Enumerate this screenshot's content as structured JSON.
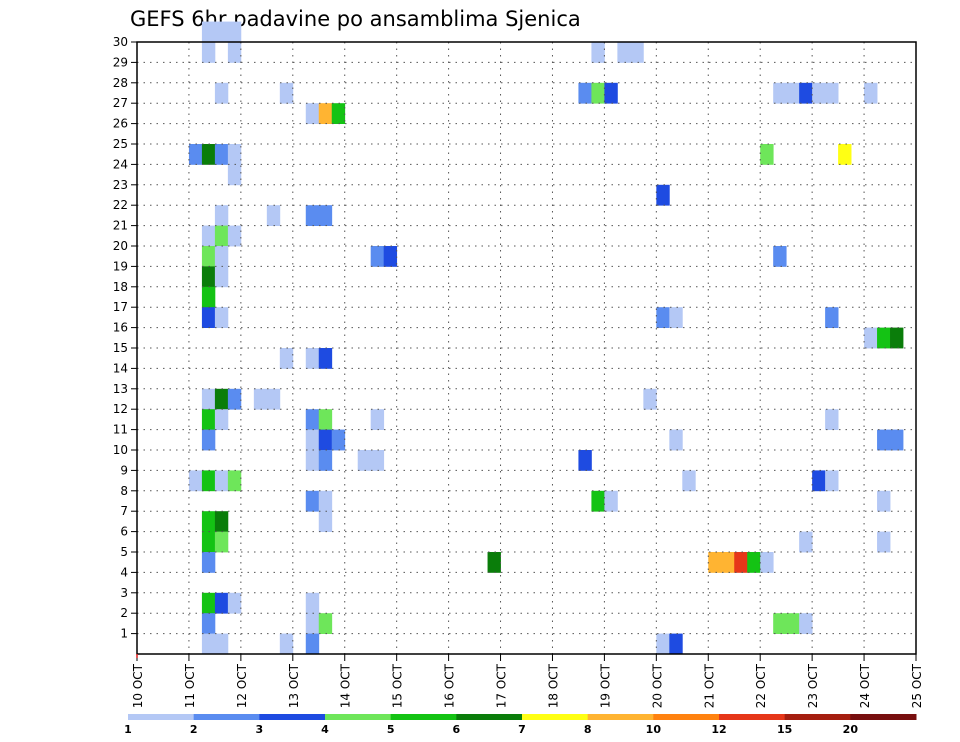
{
  "chart_data": {
    "type": "heatmap",
    "title": "GEFS 6hr padavine po ansamblima Sjenica",
    "xlabel": "",
    "ylabel": "",
    "x_ticks": [
      "10 OCT",
      "11 OCT",
      "12 OCT",
      "13 OCT",
      "14 OCT",
      "15 OCT",
      "16 OCT",
      "17 OCT",
      "18 OCT",
      "19 OCT",
      "20 OCT",
      "21 OCT",
      "22 OCT",
      "23 OCT",
      "24 OCT",
      "25 OCT"
    ],
    "y_ticks": [
      1,
      2,
      3,
      4,
      5,
      6,
      7,
      8,
      9,
      10,
      11,
      12,
      13,
      14,
      15,
      16,
      17,
      18,
      19,
      20,
      21,
      22,
      23,
      24,
      25,
      26,
      27,
      28,
      29,
      30
    ],
    "x_range": [
      0,
      60
    ],
    "y_range": [
      0,
      30
    ],
    "x_unit_note": "",
    "grid": true,
    "colorbar": {
      "labels": [
        "1",
        "2",
        "3",
        "4",
        "5",
        "6",
        "7",
        "8",
        "10",
        "12",
        "15",
        "20"
      ],
      "colors": [
        "#b4c8f5",
        "#5a8cf0",
        "#1e4be1",
        "#6ee65a",
        "#14c314",
        "#0a7d0a",
        "#ffff14",
        "#ffb432",
        "#ff820f",
        "#e63719",
        "#a51e0f",
        "#780f0f"
      ]
    },
    "levels": [
      "#b4c8f5",
      "#5a8cf0",
      "#1e4be1",
      "#6ee65a",
      "#14c314",
      "#0a7d0a",
      "#ffff14",
      "#ffb432",
      "#ff820f",
      "#e63719"
    ],
    "cells": [
      [
        5,
        30,
        1,
        1
      ],
      [
        6,
        30,
        1,
        1
      ],
      [
        7,
        30,
        1,
        1
      ],
      [
        5,
        29,
        1,
        1
      ],
      [
        7,
        29,
        1,
        1
      ],
      [
        6,
        27,
        1,
        1
      ],
      [
        11,
        27,
        1,
        1
      ],
      [
        13,
        26,
        1,
        1
      ],
      [
        14,
        26,
        8,
        1
      ],
      [
        15,
        26,
        5,
        1
      ],
      [
        4,
        24,
        2,
        1
      ],
      [
        5,
        24,
        6,
        1
      ],
      [
        6,
        24,
        2,
        1
      ],
      [
        7,
        24,
        1,
        1
      ],
      [
        7,
        23,
        1,
        1
      ],
      [
        6,
        21,
        1,
        1
      ],
      [
        10,
        21,
        1,
        1
      ],
      [
        13,
        21,
        2,
        1
      ],
      [
        14,
        21,
        2,
        1
      ],
      [
        5,
        20,
        1,
        1
      ],
      [
        6,
        20,
        4,
        1
      ],
      [
        7,
        20,
        1,
        1
      ],
      [
        5,
        19,
        4,
        1
      ],
      [
        6,
        19,
        1,
        1
      ],
      [
        5,
        18,
        6,
        1
      ],
      [
        6,
        18,
        1,
        1
      ],
      [
        5,
        17,
        5,
        1
      ],
      [
        5,
        16,
        3,
        1
      ],
      [
        6,
        16,
        1,
        1
      ],
      [
        11,
        14,
        1,
        1
      ],
      [
        13,
        14,
        1,
        1
      ],
      [
        14,
        14,
        3,
        1
      ],
      [
        5,
        12,
        1,
        1
      ],
      [
        6,
        12,
        6,
        1
      ],
      [
        7,
        12,
        2,
        1
      ],
      [
        9,
        12,
        1,
        1
      ],
      [
        10,
        12,
        1,
        1
      ],
      [
        5,
        11,
        5,
        1
      ],
      [
        6,
        11,
        1,
        1
      ],
      [
        5,
        10,
        2,
        1
      ],
      [
        13,
        11,
        2,
        1
      ],
      [
        14,
        11,
        4,
        1
      ],
      [
        13,
        10,
        1,
        1
      ],
      [
        14,
        10,
        3,
        1
      ],
      [
        15,
        10,
        2,
        1
      ],
      [
        13,
        9,
        1,
        1
      ],
      [
        14,
        9,
        2,
        1
      ],
      [
        17,
        9,
        1,
        1
      ],
      [
        18,
        9,
        1,
        1
      ],
      [
        4,
        8,
        1,
        1
      ],
      [
        5,
        8,
        5,
        1
      ],
      [
        6,
        8,
        1,
        1
      ],
      [
        7,
        8,
        4,
        1
      ],
      [
        13,
        7,
        2,
        1
      ],
      [
        14,
        7,
        1,
        1
      ],
      [
        14,
        6,
        1,
        1
      ],
      [
        5,
        6,
        5,
        1
      ],
      [
        6,
        6,
        6,
        1
      ],
      [
        5,
        5,
        5,
        1
      ],
      [
        6,
        5,
        4,
        1
      ],
      [
        5,
        4,
        2,
        1
      ],
      [
        5,
        2,
        5,
        1
      ],
      [
        6,
        2,
        3,
        1
      ],
      [
        7,
        2,
        1,
        1
      ],
      [
        5,
        1,
        2,
        1
      ],
      [
        13,
        2,
        1,
        1
      ],
      [
        13,
        1,
        1,
        1
      ],
      [
        14,
        1,
        4,
        1
      ],
      [
        5,
        0,
        1,
        1
      ],
      [
        6,
        0,
        1,
        1
      ],
      [
        11,
        0,
        1,
        1
      ],
      [
        13,
        0,
        2,
        1
      ],
      [
        18,
        19,
        2,
        1
      ],
      [
        19,
        19,
        3,
        1
      ],
      [
        18,
        11,
        1,
        1
      ],
      [
        27,
        4,
        6,
        1
      ],
      [
        35,
        29,
        1,
        1
      ],
      [
        37,
        29,
        1,
        1
      ],
      [
        38,
        29,
        1,
        1
      ],
      [
        34,
        27,
        2,
        1
      ],
      [
        35,
        27,
        4,
        1
      ],
      [
        36,
        27,
        3,
        1
      ],
      [
        34,
        9,
        3,
        1
      ],
      [
        35,
        7,
        5,
        1
      ],
      [
        36,
        7,
        1,
        1
      ],
      [
        40,
        22,
        3,
        1
      ],
      [
        40,
        16,
        2,
        1
      ],
      [
        41,
        16,
        1,
        1
      ],
      [
        39,
        12,
        1,
        1
      ],
      [
        41,
        10,
        1,
        1
      ],
      [
        40,
        0,
        1,
        1
      ],
      [
        41,
        0,
        3,
        1
      ],
      [
        42,
        8,
        1,
        1
      ],
      [
        44,
        4,
        8,
        1
      ],
      [
        45,
        4,
        8,
        1
      ],
      [
        46,
        4,
        10,
        1
      ],
      [
        47,
        4,
        5,
        1
      ],
      [
        48,
        4,
        1,
        1
      ],
      [
        48,
        24,
        4,
        1
      ],
      [
        49,
        19,
        2,
        1
      ],
      [
        49,
        27,
        1,
        1
      ],
      [
        50,
        27,
        1,
        1
      ],
      [
        51,
        27,
        3,
        1
      ],
      [
        52,
        27,
        1,
        1
      ],
      [
        53,
        27,
        1,
        1
      ],
      [
        56,
        27,
        1,
        1
      ],
      [
        49,
        1,
        4,
        1
      ],
      [
        50,
        1,
        4,
        1
      ],
      [
        51,
        1,
        1,
        1
      ],
      [
        51,
        5,
        1,
        1
      ],
      [
        52,
        8,
        3,
        1
      ],
      [
        53,
        8,
        1,
        1
      ],
      [
        54,
        24,
        7,
        1
      ],
      [
        53,
        16,
        2,
        1
      ],
      [
        53,
        11,
        1,
        1
      ],
      [
        56,
        15,
        1,
        1
      ],
      [
        57,
        15,
        5,
        1
      ],
      [
        58,
        15,
        6,
        1
      ],
      [
        57,
        10,
        2,
        1
      ],
      [
        58,
        10,
        2,
        1
      ],
      [
        57,
        7,
        1,
        1
      ],
      [
        57,
        5,
        1,
        1
      ]
    ]
  }
}
